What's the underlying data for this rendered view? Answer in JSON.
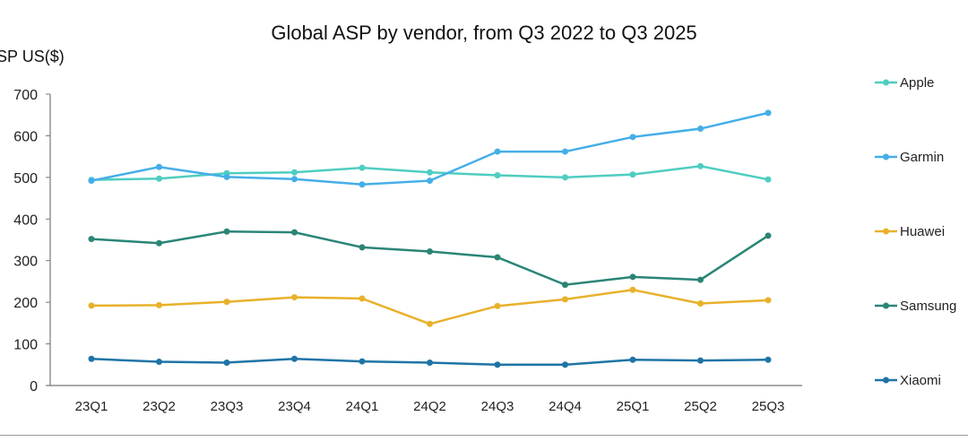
{
  "chart_data": {
    "type": "line",
    "title": "Global ASP by vendor, from Q3 2022 to Q3 2025",
    "ylabel": "ASP US($)",
    "xlabel": "",
    "ylim": [
      0,
      700
    ],
    "yticks": [
      0,
      100,
      200,
      300,
      400,
      500,
      600,
      700
    ],
    "grid": false,
    "legend": "right",
    "categories": [
      "23Q1",
      "23Q2",
      "23Q3",
      "23Q4",
      "24Q1",
      "24Q2",
      "24Q3",
      "24Q4",
      "25Q1",
      "25Q2",
      "25Q3"
    ],
    "series": [
      {
        "name": "Apple",
        "color": "#4ecdc0",
        "values": [
          494,
          497,
          510,
          512,
          523,
          512,
          505,
          500,
          507,
          527,
          495
        ]
      },
      {
        "name": "Garmin",
        "color": "#45aee8",
        "values": [
          492,
          525,
          501,
          496,
          483,
          492,
          562,
          562,
          597,
          617,
          655
        ]
      },
      {
        "name": "Huawei",
        "color": "#e8b12a",
        "values": [
          192,
          193,
          201,
          212,
          209,
          148,
          191,
          207,
          230,
          197,
          205
        ]
      },
      {
        "name": "Samsung",
        "color": "#2a8576",
        "values": [
          352,
          342,
          370,
          368,
          332,
          322,
          308,
          242,
          261,
          254,
          360
        ]
      },
      {
        "name": "Xiaomi",
        "color": "#1f74a6",
        "values": [
          64,
          57,
          55,
          64,
          58,
          55,
          50,
          50,
          62,
          60,
          62
        ]
      }
    ]
  }
}
